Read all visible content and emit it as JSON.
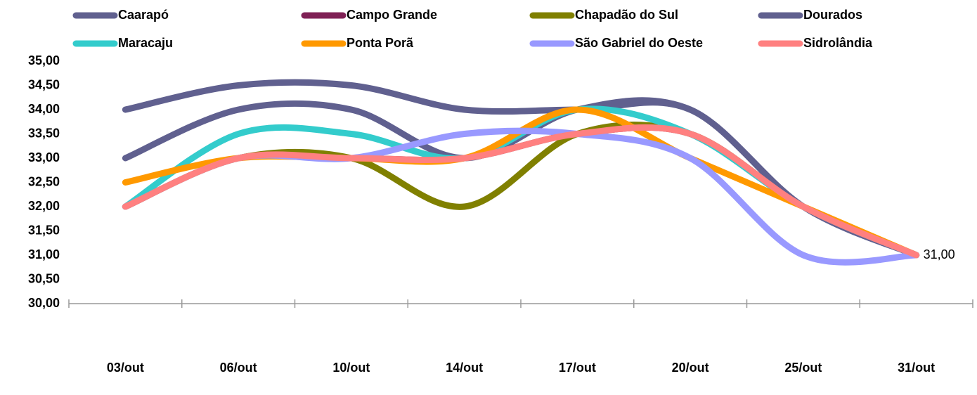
{
  "chart_data": {
    "type": "line",
    "smooth": true,
    "categories": [
      "03/out",
      "06/out",
      "10/out",
      "14/out",
      "17/out",
      "20/out",
      "25/out",
      "31/out"
    ],
    "series": [
      {
        "name": "Caarapó",
        "color": "#60608f",
        "values": [
          34,
          34.5,
          34.5,
          34,
          34,
          34,
          32,
          31
        ]
      },
      {
        "name": "Campo Grande",
        "color": "#7f2055",
        "values": [
          32,
          33,
          33,
          33,
          33.5,
          33.5,
          32,
          31
        ]
      },
      {
        "name": "Chapadão do Sul",
        "color": "#808000",
        "values": [
          32,
          33,
          33,
          32,
          33.5,
          33.5,
          32,
          31
        ]
      },
      {
        "name": "Dourados",
        "color": "#60608f",
        "values": [
          33,
          34,
          34,
          33,
          34,
          34,
          32,
          31
        ]
      },
      {
        "name": "Maracaju",
        "color": "#33cccc",
        "values": [
          32,
          33.5,
          33.5,
          33,
          34,
          33.5,
          32,
          31
        ]
      },
      {
        "name": "Ponta Porã",
        "color": "#ff9900",
        "values": [
          32.5,
          33,
          33,
          33,
          34,
          33,
          32,
          31
        ]
      },
      {
        "name": "São Gabriel do Oeste",
        "color": "#9999ff",
        "values": [
          32,
          33,
          33,
          33.5,
          33.5,
          33,
          31,
          31
        ]
      },
      {
        "name": "Sidrolândia",
        "color": "#ff8080",
        "values": [
          32,
          33,
          33,
          33,
          33.5,
          33.5,
          32,
          31
        ],
        "value_labels": [
          null,
          null,
          null,
          null,
          null,
          null,
          null,
          "31,00"
        ]
      }
    ],
    "ylim": [
      30,
      35
    ],
    "yticks": [
      {
        "value": 30,
        "label": "30,00"
      },
      {
        "value": 30.5,
        "label": "30,50"
      },
      {
        "value": 31,
        "label": "31,00"
      },
      {
        "value": 31.5,
        "label": "31,50"
      },
      {
        "value": 32,
        "label": "32,00"
      },
      {
        "value": 32.5,
        "label": "32,50"
      },
      {
        "value": 33,
        "label": "33,00"
      },
      {
        "value": 33.5,
        "label": "33,50"
      },
      {
        "value": 34,
        "label": "34,00"
      },
      {
        "value": 34.5,
        "label": "34,50"
      },
      {
        "value": 35,
        "label": "35,00"
      }
    ],
    "legend": "top",
    "grid": false
  }
}
